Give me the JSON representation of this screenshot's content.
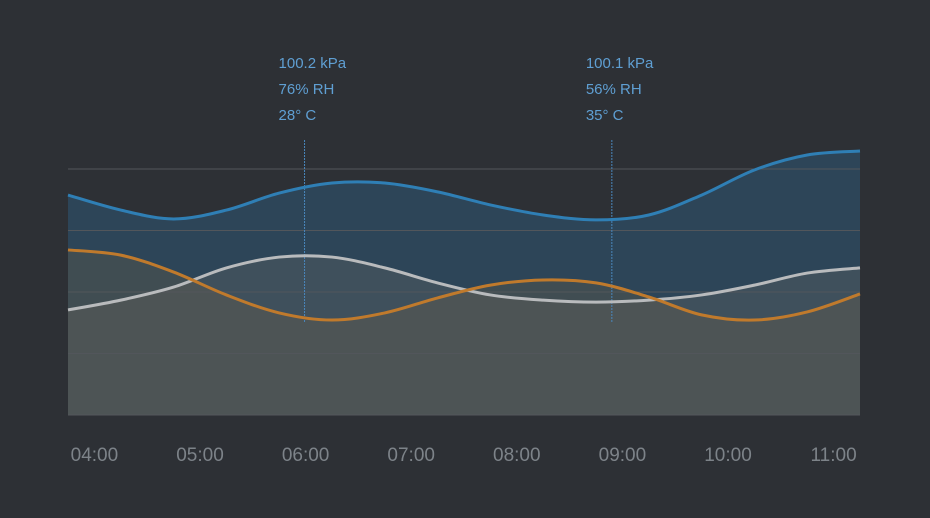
{
  "chart_data": {
    "type": "line",
    "xlim": [
      3.75,
      11.25
    ],
    "xticks": [
      {
        "value": 4,
        "label": "04:00"
      },
      {
        "value": 5,
        "label": "05:00"
      },
      {
        "value": 6,
        "label": "06:00"
      },
      {
        "value": 7,
        "label": "07:00"
      },
      {
        "value": 8,
        "label": "08:00"
      },
      {
        "value": 9,
        "label": "09:00"
      },
      {
        "value": 10,
        "label": "10:00"
      },
      {
        "value": 11,
        "label": "11:00"
      }
    ],
    "ylim": [
      0,
      110
    ],
    "gridlines": [
      0,
      25,
      50,
      75,
      100
    ],
    "x": [
      3.75,
      4.25,
      4.75,
      5.25,
      5.75,
      6.25,
      6.75,
      7.25,
      7.75,
      8.25,
      8.75,
      9.25,
      9.75,
      10.25,
      10.75,
      11.25
    ],
    "series": [
      {
        "color": "#2f7fb5",
        "fill": "rgba(47,110,155,0.35)",
        "values": [
          89.4,
          83.3,
          79.7,
          83.3,
          90.2,
          94.3,
          94.3,
          90.7,
          85.4,
          81.3,
          79.3,
          81.3,
          89.4,
          99.6,
          105.7,
          107.3
        ]
      },
      {
        "color": "#b9bbbd",
        "fill": "rgba(120,115,105,0.25)",
        "values": [
          42.7,
          46.7,
          52.0,
          59.8,
          64.2,
          64.2,
          59.8,
          53.7,
          48.8,
          46.7,
          45.9,
          46.7,
          48.8,
          52.8,
          57.7,
          59.8
        ]
      },
      {
        "color": "#c07a2c",
        "fill": "rgba(110,95,70,0.3)",
        "values": [
          67.1,
          65.0,
          58.1,
          48.8,
          41.5,
          38.6,
          41.5,
          47.6,
          52.8,
          54.9,
          53.7,
          48.0,
          40.7,
          38.6,
          41.9,
          49.2
        ]
      }
    ],
    "annotations": [
      {
        "x": 5.99,
        "lines": [
          "100.2 kPa",
          "76% RH",
          "28° C"
        ]
      },
      {
        "x": 8.9,
        "lines": [
          "100.1 kPa",
          "56% RH",
          "35° C"
        ]
      }
    ]
  }
}
